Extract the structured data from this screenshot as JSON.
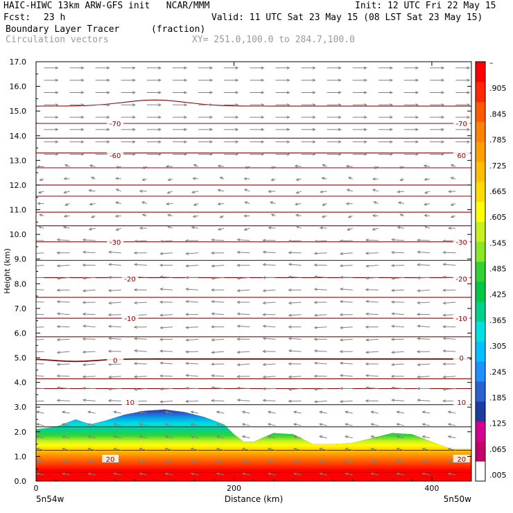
{
  "header": {
    "title_left": "HAIC-HIWC 13km ARW-GFS init   NCAR/MMM",
    "init": "Init: 12 UTC Fri 22 May 15",
    "fcst_label": "Fcst:",
    "fcst_value": "23 h",
    "valid": "Valid: 11 UTC Sat 23 May 15 (08 LST Sat 23 May 15)",
    "field1": "Boundary Layer Tracer",
    "field1_units": "(fraction)",
    "field2": "Circulation vectors",
    "xy": "XY= 251.0,100.0 to 284.7,100.0"
  },
  "colors": {
    "contour": "#8b0000",
    "vector": "#808080",
    "scale": [
      "#ffffff",
      "#c3006c",
      "#d5008e",
      "#1e3ca0",
      "#2a62d2",
      "#1e90ff",
      "#00c0ff",
      "#00e0e0",
      "#00d28c",
      "#00c846",
      "#32d232",
      "#8ce628",
      "#c8f01e",
      "#ffff00",
      "#ffdc00",
      "#ffbe00",
      "#ffa000",
      "#ff8200",
      "#ff5a00",
      "#ff2800",
      "#ff0000"
    ]
  },
  "chart_data": {
    "type": "cross-section",
    "ylabel": "Height (km)",
    "xlabel": "Distance (km)",
    "xlim": [
      0,
      440
    ],
    "ylim": [
      0,
      17
    ],
    "x_ticks": [
      "0",
      "200",
      "400"
    ],
    "x_tick_values": [
      0,
      200,
      400
    ],
    "y_ticks": [
      "0.0",
      "1.0",
      "2.0",
      "3.0",
      "4.0",
      "5.0",
      "6.0",
      "7.0",
      "8.0",
      "9.0",
      "10.0",
      "11.0",
      "12.0",
      "13.0",
      "14.0",
      "15.0",
      "16.0",
      "17.0"
    ],
    "left_endpoint": "5n54w",
    "right_endpoint": "5n50w",
    "colorbar_labels": [
      ".005",
      ".065",
      ".125",
      ".185",
      ".245",
      ".305",
      ".365",
      ".425",
      ".485",
      ".545",
      ".605",
      ".665",
      ".725",
      ".785",
      ".845",
      ".905",
      "–"
    ],
    "tracer_top_km": {
      "x": [
        0,
        20,
        40,
        55,
        70,
        90,
        110,
        130,
        150,
        170,
        190,
        200,
        210,
        220,
        240,
        260,
        280,
        300,
        320,
        340,
        360,
        380,
        400,
        420,
        440
      ],
      "y": [
        2.1,
        2.2,
        2.5,
        2.3,
        2.45,
        2.7,
        2.85,
        2.9,
        2.8,
        2.6,
        2.3,
        1.9,
        1.6,
        1.6,
        1.95,
        1.9,
        1.5,
        1.5,
        1.55,
        1.75,
        1.95,
        1.9,
        1.6,
        1.3,
        1.3
      ]
    },
    "contour_labels": [
      {
        "value": "-70",
        "x": 80,
        "y": 14.5
      },
      {
        "value": "-70",
        "x": 430,
        "y": 14.5
      },
      {
        "value": "-60",
        "x": 80,
        "y": 13.2
      },
      {
        "value": "60",
        "x": 430,
        "y": 13.2
      },
      {
        "value": "-30",
        "x": 80,
        "y": 9.7
      },
      {
        "value": "-30",
        "x": 430,
        "y": 9.7
      },
      {
        "value": "-20",
        "x": 95,
        "y": 8.2
      },
      {
        "value": "-20",
        "x": 430,
        "y": 8.2
      },
      {
        "value": "-10",
        "x": 95,
        "y": 6.6
      },
      {
        "value": "-10",
        "x": 430,
        "y": 6.6
      },
      {
        "value": "0",
        "x": 80,
        "y": 4.9
      },
      {
        "value": "0",
        "x": 430,
        "y": 5.0
      },
      {
        "value": "10",
        "x": 95,
        "y": 3.2
      },
      {
        "value": "10",
        "x": 430,
        "y": 3.2
      },
      {
        "value": "20",
        "x": 75,
        "y": 0.9
      },
      {
        "value": "20",
        "x": 430,
        "y": 0.9
      }
    ]
  }
}
